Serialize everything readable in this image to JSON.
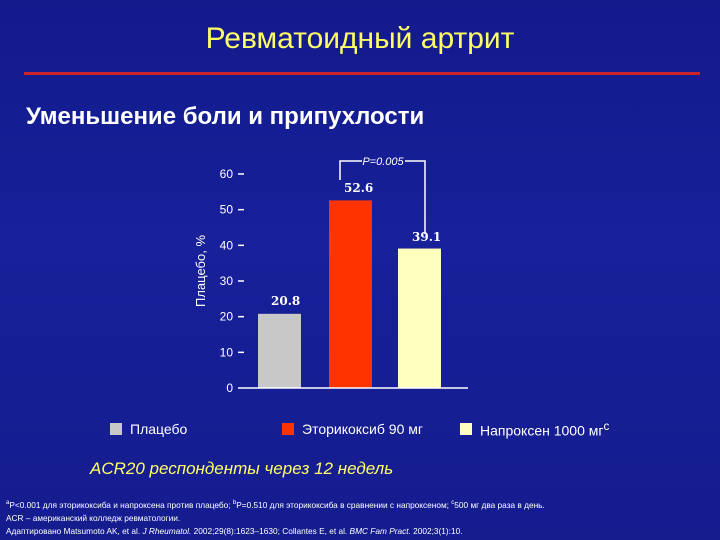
{
  "slide": {
    "title": "Ревматоидный артрит",
    "subtitle": "Уменьшение боли и припухлости",
    "caption": "ACR20 респонденты через 12 недель"
  },
  "colors": {
    "background": "#141c8e",
    "title_text": "#ffff66",
    "title_rule": "#c8262a",
    "caption_text": "#ffff66"
  },
  "chart_data": {
    "type": "bar",
    "categories": [
      "Плацебо",
      "Эторикоксиб 90 мг",
      "Напроксен 1000 мг"
    ],
    "values": [
      20.8,
      52.6,
      39.1
    ],
    "value_labels": [
      "20.8",
      "52.6",
      "39.1"
    ],
    "colors": [
      "#c8c8c8",
      "#ff3300",
      "#ffffc0"
    ],
    "ylabel": "Плацебо, %",
    "xlabel": "",
    "ylim": [
      0,
      60
    ],
    "yticks": [
      0,
      10,
      20,
      30,
      40,
      50,
      60
    ],
    "grid": false,
    "legend": {
      "position": "bottom",
      "entries": [
        {
          "label": "Плацебо",
          "superscript": ""
        },
        {
          "label": "Эторикоксиб 90 мг",
          "superscript": ""
        },
        {
          "label": "Напроксен 1000 мг",
          "superscript": "c"
        }
      ]
    },
    "annotation": {
      "text": "P=0.005",
      "between": [
        "Эторикоксиб 90 мг",
        "Напроксен 1000 мг"
      ]
    }
  },
  "footnotes": {
    "line1": {
      "a_sup": "a",
      "a_text": "P<0.001 для эторикоксиба и напроксена против плацебо; ",
      "b_sup": "b",
      "b_text": "P=0.510 для эторикоксиба в сравнении с напроксеном; ",
      "c_sup": "c",
      "c_text": "500 мг два раза в день."
    },
    "line2": "ACR – американский колледж ревматологии.",
    "line3": {
      "pre": "Адаптировано Matsumoto AK, et al. ",
      "j1": "J Rheumatol.",
      "mid": " 2002;29(8):1623–1630; Collantes E, et al. ",
      "j2": "BMC Fam Pract.",
      "post": " 2002;3(1):10."
    }
  }
}
